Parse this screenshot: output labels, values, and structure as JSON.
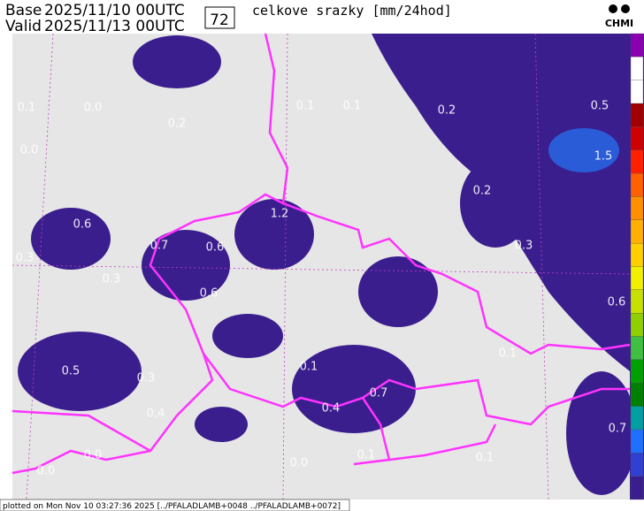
{
  "header": {
    "base_label": "Base",
    "base_time": "2025/11/10 00UTC",
    "valid_label": "Valid",
    "valid_time": "2025/11/13 00UTC",
    "lead_hours": "72",
    "title": "celkove srazky [mm/24hod]",
    "logo": "CHMI"
  },
  "map": {
    "labels": [
      "0.1",
      "0.0",
      "0.2",
      "0.0",
      "0.1",
      "0.1",
      "0.2",
      "0.5",
      "1.5",
      "0.2",
      "0.6",
      "1.2",
      "0.7",
      "0.6",
      "0.3",
      "0.3",
      "0.6",
      "0.3",
      "0.6",
      "0.1",
      "0.1",
      "0.5",
      "0.3",
      "0.7",
      "0.4",
      "0.4",
      "0.7",
      "0.0",
      "0.0",
      "0.1",
      "0.1",
      "0.0"
    ]
  },
  "footer": {
    "text": "plotted on Mon Nov 10 03:27:36 2025 [../PFALADLAMB+0048 ../PFALADLAMB+0072]"
  }
}
